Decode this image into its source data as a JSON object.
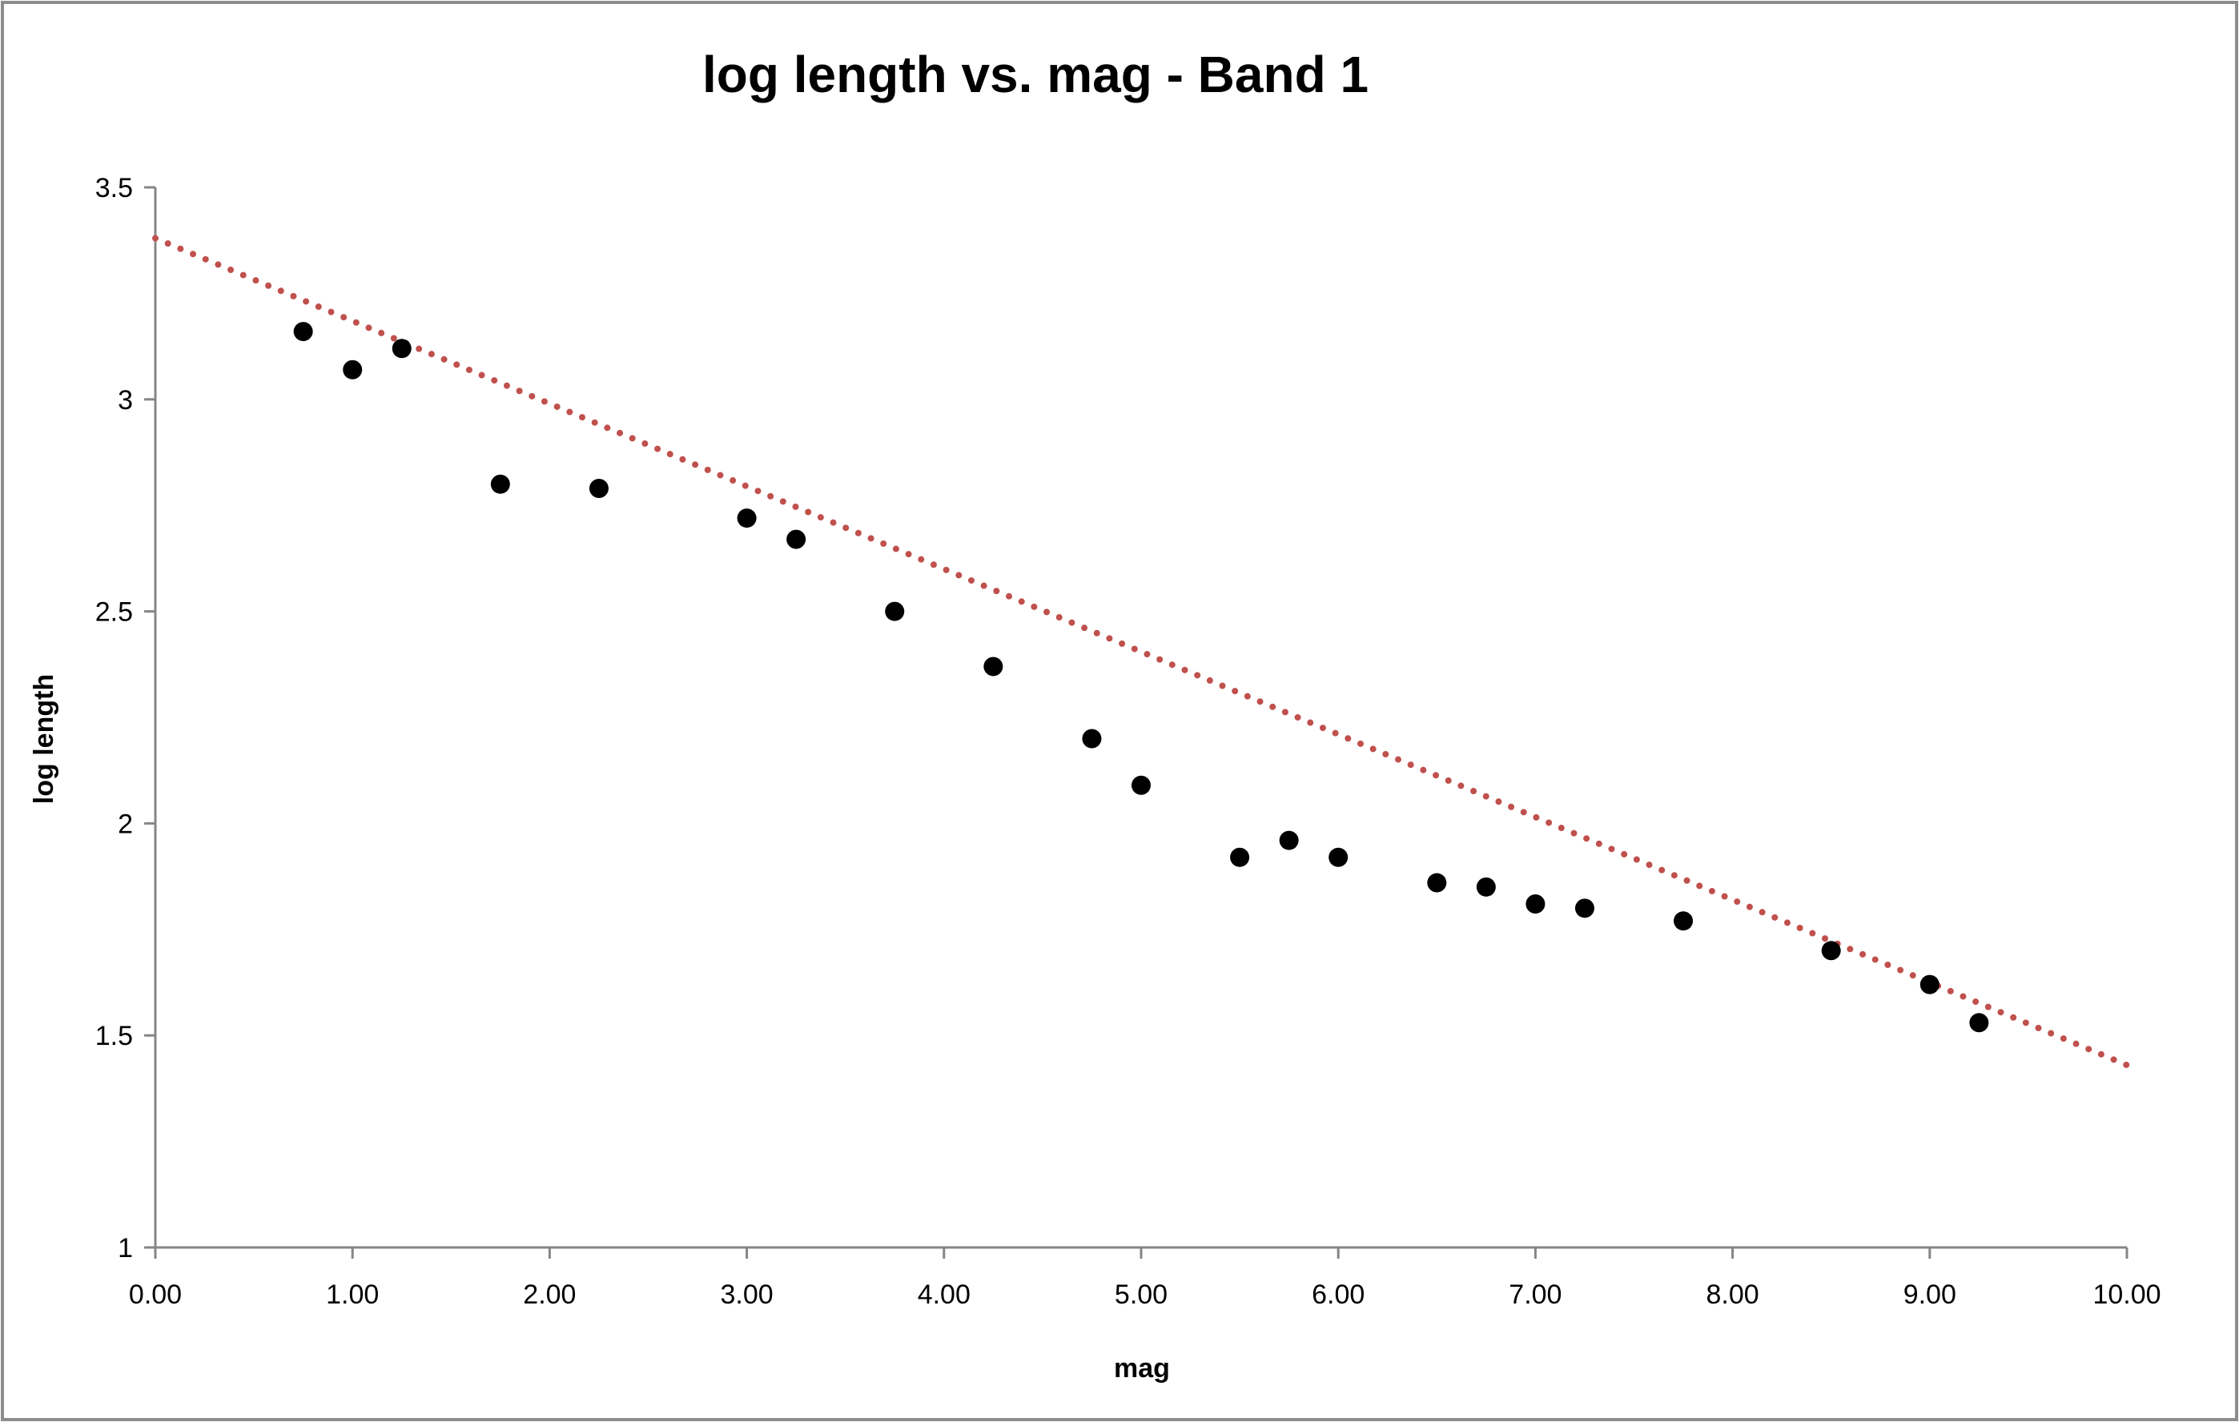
{
  "chart_data": {
    "type": "scatter",
    "title": "log length vs. mag - Band 1",
    "xlabel": "mag",
    "ylabel": "log length",
    "xlim": [
      0,
      10
    ],
    "ylim": [
      1,
      3.5
    ],
    "x_ticks": [
      "0.00",
      "1.00",
      "2.00",
      "3.00",
      "4.00",
      "5.00",
      "6.00",
      "7.00",
      "8.00",
      "9.00",
      "10.00"
    ],
    "y_ticks": [
      "1",
      "1.5",
      "2",
      "2.5",
      "3",
      "3.5"
    ],
    "x_tick_values": [
      0,
      1,
      2,
      3,
      4,
      5,
      6,
      7,
      8,
      9,
      10
    ],
    "y_tick_values": [
      1,
      1.5,
      2,
      2.5,
      3,
      3.5
    ],
    "grid": false,
    "legend": "none",
    "series": [
      {
        "points": [
          {
            "x": 0.75,
            "y": 3.16
          },
          {
            "x": 1.0,
            "y": 3.07
          },
          {
            "x": 1.25,
            "y": 3.12
          },
          {
            "x": 1.75,
            "y": 2.8
          },
          {
            "x": 2.25,
            "y": 2.79
          },
          {
            "x": 3.0,
            "y": 2.72
          },
          {
            "x": 3.25,
            "y": 2.67
          },
          {
            "x": 3.75,
            "y": 2.5
          },
          {
            "x": 4.25,
            "y": 2.37
          },
          {
            "x": 4.75,
            "y": 2.2
          },
          {
            "x": 5.0,
            "y": 2.09
          },
          {
            "x": 5.5,
            "y": 1.92
          },
          {
            "x": 5.75,
            "y": 1.96
          },
          {
            "x": 6.0,
            "y": 1.92
          },
          {
            "x": 6.5,
            "y": 1.86
          },
          {
            "x": 6.75,
            "y": 1.85
          },
          {
            "x": 7.0,
            "y": 1.81
          },
          {
            "x": 7.25,
            "y": 1.8
          },
          {
            "x": 7.75,
            "y": 1.77
          },
          {
            "x": 8.5,
            "y": 1.7
          },
          {
            "x": 9.0,
            "y": 1.62
          },
          {
            "x": 9.25,
            "y": 1.53
          }
        ],
        "color": "#000000"
      },
      {
        "kind": "trendline",
        "style": "dotted",
        "color": "#c0504d",
        "from": {
          "x": 0,
          "y": 3.38
        },
        "to": {
          "x": 10,
          "y": 1.43
        }
      }
    ]
  }
}
